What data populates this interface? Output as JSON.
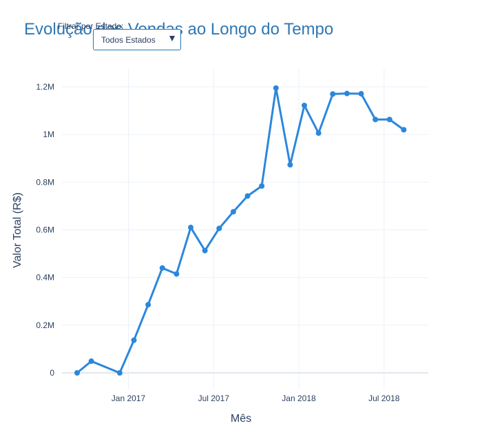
{
  "chart_data": {
    "type": "line",
    "title": "Evolução das Vendas ao Longo do Tempo",
    "xlabel": "Mês",
    "ylabel": "Valor Total (R$)",
    "x": [
      "2016-09",
      "2016-10",
      "2016-12",
      "2017-01",
      "2017-02",
      "2017-03",
      "2017-04",
      "2017-05",
      "2017-06",
      "2017-07",
      "2017-08",
      "2017-09",
      "2017-10",
      "2017-11",
      "2017-12",
      "2018-01",
      "2018-02",
      "2018-03",
      "2018-04",
      "2018-05",
      "2018-06",
      "2018-07",
      "2018-08"
    ],
    "series": [
      {
        "values": [
          0,
          49000,
          0,
          137000,
          286000,
          440000,
          415000,
          610000,
          513000,
          606000,
          676000,
          742000,
          784000,
          1195000,
          873000,
          1122000,
          1006000,
          1170000,
          1172000,
          1171000,
          1063000,
          1063000,
          1020000
        ]
      }
    ],
    "xticks": [
      "Jan 2017",
      "Jul 2017",
      "Jan 2018",
      "Jul 2018"
    ],
    "yticks": [
      "0",
      "0.2M",
      "0.4M",
      "0.6M",
      "0.8M",
      "1M",
      "1.2M"
    ],
    "ylim": [
      -80000,
      1270000
    ],
    "grid": true,
    "color": "#2b87dc"
  },
  "filter": {
    "label": "Filtrar por Estado:",
    "selected": "Todos Estados"
  },
  "colors": {
    "title": "#2e78b5",
    "axis_text": "#2a3f5f",
    "grid": "#ebf0f8",
    "dropdown_border": "#1f77b4"
  }
}
